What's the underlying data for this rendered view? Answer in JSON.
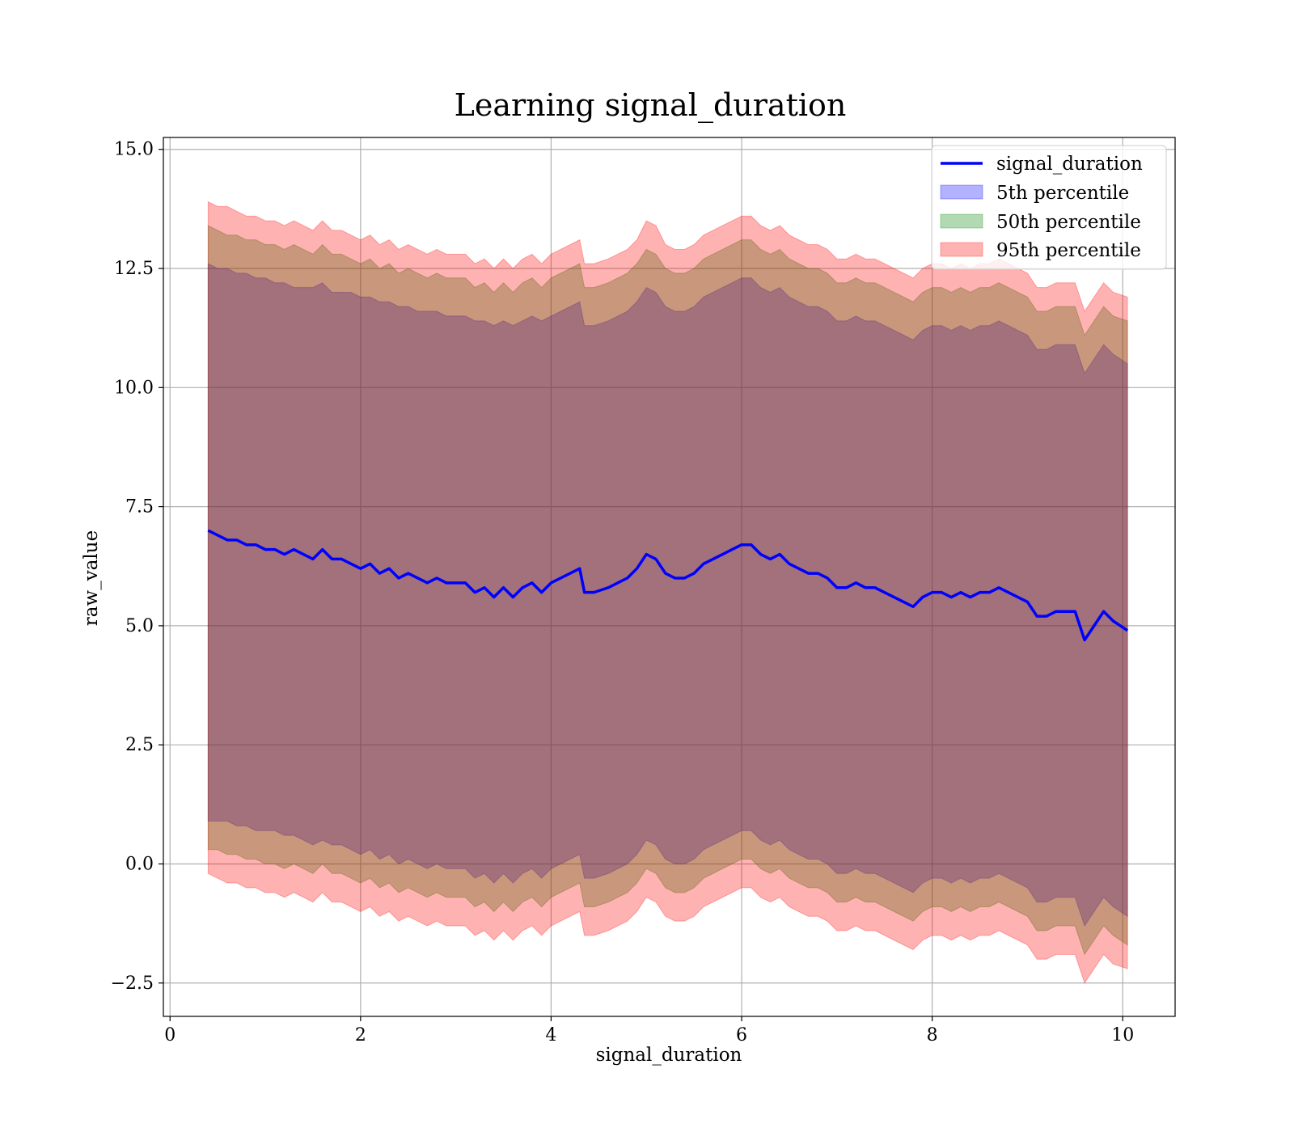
{
  "chart_data": {
    "type": "area",
    "title": "Learning signal_duration",
    "xlabel": "signal_duration",
    "ylabel": "raw_value",
    "xlim": [
      -0.07,
      10.55
    ],
    "ylim": [
      -3.2,
      15.25
    ],
    "xticks": [
      0,
      2,
      4,
      6,
      8,
      10
    ],
    "yticks": [
      -2.5,
      0.0,
      2.5,
      5.0,
      7.5,
      10.0,
      12.5,
      15.0
    ],
    "xtick_labels": [
      "0",
      "2",
      "4",
      "6",
      "8",
      "10"
    ],
    "ytick_labels": [
      "−2.5",
      "0.0",
      "2.5",
      "5.0",
      "7.5",
      "10.0",
      "12.5",
      "15.0"
    ],
    "grid": true,
    "legend_position": "top-right",
    "legend": [
      "signal_duration",
      "5th percentile",
      "50th percentile",
      "95th percentile"
    ],
    "colors": {
      "line": "#0000ff",
      "band_5th": "#0000ff",
      "band_50th": "#008000",
      "band_95th": "#ff0000"
    },
    "x": [
      0.4,
      0.5,
      0.6,
      0.7,
      0.8,
      0.9,
      1.0,
      1.1,
      1.2,
      1.3,
      1.4,
      1.5,
      1.6,
      1.7,
      1.8,
      1.9,
      2.0,
      2.1,
      2.2,
      2.3,
      2.4,
      2.5,
      2.6,
      2.7,
      2.8,
      2.9,
      3.0,
      3.1,
      3.2,
      3.3,
      3.4,
      3.5,
      3.6,
      3.7,
      3.8,
      3.9,
      4.0,
      4.1,
      4.2,
      4.3,
      4.35,
      4.45,
      4.6,
      4.7,
      4.8,
      4.9,
      5.0,
      5.1,
      5.2,
      5.3,
      5.4,
      5.5,
      5.6,
      5.7,
      5.8,
      5.9,
      6.0,
      6.1,
      6.2,
      6.3,
      6.4,
      6.5,
      6.6,
      6.7,
      6.8,
      6.9,
      7.0,
      7.1,
      7.2,
      7.3,
      7.4,
      7.5,
      7.6,
      7.7,
      7.8,
      7.9,
      8.0,
      8.1,
      8.2,
      8.3,
      8.4,
      8.5,
      8.6,
      8.7,
      8.8,
      8.9,
      9.0,
      9.1,
      9.2,
      9.3,
      9.4,
      9.5,
      9.6,
      9.7,
      9.8,
      9.9,
      10.05
    ],
    "series": [
      {
        "name": "signal_duration",
        "values": [
          7.0,
          6.9,
          6.8,
          6.8,
          6.7,
          6.7,
          6.6,
          6.6,
          6.5,
          6.6,
          6.5,
          6.4,
          6.6,
          6.4,
          6.4,
          6.3,
          6.2,
          6.3,
          6.1,
          6.2,
          6.0,
          6.1,
          6.0,
          5.9,
          6.0,
          5.9,
          5.9,
          5.9,
          5.7,
          5.8,
          5.6,
          5.8,
          5.6,
          5.8,
          5.9,
          5.7,
          5.9,
          6.0,
          6.1,
          6.2,
          5.7,
          5.7,
          5.8,
          5.9,
          6.0,
          6.2,
          6.5,
          6.4,
          6.1,
          6.0,
          6.0,
          6.1,
          6.3,
          6.4,
          6.5,
          6.6,
          6.7,
          6.7,
          6.5,
          6.4,
          6.5,
          6.3,
          6.2,
          6.1,
          6.1,
          6.0,
          5.8,
          5.8,
          5.9,
          5.8,
          5.8,
          5.7,
          5.6,
          5.5,
          5.4,
          5.6,
          5.7,
          5.7,
          5.6,
          5.7,
          5.6,
          5.7,
          5.7,
          5.8,
          5.7,
          5.6,
          5.5,
          5.2,
          5.2,
          5.3,
          5.3,
          5.3,
          4.7,
          5.0,
          5.3,
          5.1,
          4.9
        ]
      }
    ],
    "bands": [
      {
        "name": "5th percentile",
        "lower": [
          0.9,
          0.9,
          0.9,
          0.8,
          0.8,
          0.7,
          0.7,
          0.7,
          0.6,
          0.6,
          0.5,
          0.4,
          0.5,
          0.4,
          0.4,
          0.3,
          0.2,
          0.3,
          0.1,
          0.2,
          0.0,
          0.1,
          0.0,
          -0.1,
          0.0,
          -0.1,
          -0.1,
          -0.1,
          -0.3,
          -0.2,
          -0.4,
          -0.2,
          -0.4,
          -0.2,
          -0.1,
          -0.3,
          -0.1,
          0.0,
          0.1,
          0.2,
          -0.3,
          -0.3,
          -0.2,
          -0.1,
          0.0,
          0.2,
          0.5,
          0.4,
          0.1,
          0.0,
          0.0,
          0.1,
          0.3,
          0.4,
          0.5,
          0.6,
          0.7,
          0.7,
          0.5,
          0.4,
          0.5,
          0.3,
          0.2,
          0.1,
          0.1,
          0.0,
          -0.2,
          -0.2,
          -0.1,
          -0.2,
          -0.2,
          -0.3,
          -0.4,
          -0.5,
          -0.6,
          -0.4,
          -0.3,
          -0.3,
          -0.4,
          -0.3,
          -0.4,
          -0.3,
          -0.3,
          -0.2,
          -0.3,
          -0.4,
          -0.5,
          -0.8,
          -0.8,
          -0.7,
          -0.7,
          -0.7,
          -1.3,
          -1.0,
          -0.7,
          -0.9,
          -1.1
        ],
        "upper": [
          12.6,
          12.5,
          12.5,
          12.4,
          12.4,
          12.3,
          12.3,
          12.2,
          12.2,
          12.1,
          12.1,
          12.1,
          12.2,
          12.0,
          12.0,
          12.0,
          11.9,
          11.9,
          11.8,
          11.8,
          11.7,
          11.7,
          11.6,
          11.6,
          11.6,
          11.5,
          11.5,
          11.5,
          11.4,
          11.4,
          11.3,
          11.4,
          11.3,
          11.4,
          11.5,
          11.4,
          11.5,
          11.6,
          11.7,
          11.8,
          11.3,
          11.3,
          11.4,
          11.5,
          11.6,
          11.8,
          12.1,
          12.0,
          11.7,
          11.6,
          11.6,
          11.7,
          11.9,
          12.0,
          12.1,
          12.2,
          12.3,
          12.3,
          12.1,
          12.0,
          12.1,
          11.9,
          11.8,
          11.7,
          11.7,
          11.6,
          11.4,
          11.4,
          11.5,
          11.4,
          11.4,
          11.3,
          11.2,
          11.1,
          11.0,
          11.2,
          11.3,
          11.3,
          11.2,
          11.3,
          11.2,
          11.3,
          11.3,
          11.4,
          11.3,
          11.2,
          11.1,
          10.8,
          10.8,
          10.9,
          10.9,
          10.9,
          10.3,
          10.6,
          10.9,
          10.7,
          10.5
        ]
      },
      {
        "name": "50th percentile",
        "lower": [
          0.3,
          0.3,
          0.2,
          0.2,
          0.1,
          0.1,
          0.0,
          0.0,
          -0.1,
          0.0,
          -0.1,
          -0.2,
          0.0,
          -0.2,
          -0.2,
          -0.3,
          -0.4,
          -0.3,
          -0.5,
          -0.4,
          -0.6,
          -0.5,
          -0.6,
          -0.7,
          -0.6,
          -0.7,
          -0.7,
          -0.7,
          -0.9,
          -0.8,
          -1.0,
          -0.8,
          -1.0,
          -0.8,
          -0.7,
          -0.9,
          -0.7,
          -0.6,
          -0.5,
          -0.4,
          -0.9,
          -0.9,
          -0.8,
          -0.7,
          -0.6,
          -0.4,
          -0.1,
          -0.2,
          -0.5,
          -0.6,
          -0.6,
          -0.5,
          -0.3,
          -0.2,
          -0.1,
          0.0,
          0.1,
          0.1,
          -0.1,
          -0.2,
          -0.1,
          -0.3,
          -0.4,
          -0.5,
          -0.5,
          -0.6,
          -0.8,
          -0.8,
          -0.7,
          -0.8,
          -0.8,
          -0.9,
          -1.0,
          -1.1,
          -1.2,
          -1.0,
          -0.9,
          -0.9,
          -1.0,
          -0.9,
          -1.0,
          -0.9,
          -0.9,
          -0.8,
          -0.9,
          -1.0,
          -1.1,
          -1.4,
          -1.4,
          -1.3,
          -1.3,
          -1.3,
          -1.9,
          -1.6,
          -1.3,
          -1.5,
          -1.7
        ],
        "upper": [
          13.4,
          13.3,
          13.2,
          13.2,
          13.1,
          13.1,
          13.0,
          13.0,
          12.9,
          13.0,
          12.9,
          12.8,
          13.0,
          12.8,
          12.8,
          12.7,
          12.6,
          12.7,
          12.5,
          12.6,
          12.4,
          12.5,
          12.4,
          12.3,
          12.4,
          12.3,
          12.3,
          12.3,
          12.1,
          12.2,
          12.0,
          12.2,
          12.0,
          12.2,
          12.3,
          12.1,
          12.3,
          12.4,
          12.5,
          12.6,
          12.1,
          12.1,
          12.2,
          12.3,
          12.4,
          12.6,
          12.9,
          12.8,
          12.5,
          12.4,
          12.4,
          12.5,
          12.7,
          12.8,
          12.9,
          13.0,
          13.1,
          13.1,
          12.9,
          12.8,
          12.9,
          12.7,
          12.6,
          12.5,
          12.5,
          12.4,
          12.2,
          12.2,
          12.3,
          12.2,
          12.2,
          12.1,
          12.0,
          11.9,
          11.8,
          12.0,
          12.1,
          12.1,
          12.0,
          12.1,
          12.0,
          12.1,
          12.1,
          12.2,
          12.1,
          12.0,
          11.9,
          11.6,
          11.6,
          11.7,
          11.7,
          11.7,
          11.1,
          11.4,
          11.7,
          11.5,
          11.4
        ]
      },
      {
        "name": "95th percentile",
        "lower": [
          -0.2,
          -0.3,
          -0.4,
          -0.4,
          -0.5,
          -0.5,
          -0.6,
          -0.6,
          -0.7,
          -0.6,
          -0.7,
          -0.8,
          -0.6,
          -0.8,
          -0.8,
          -0.9,
          -1.0,
          -0.9,
          -1.1,
          -1.0,
          -1.2,
          -1.1,
          -1.2,
          -1.3,
          -1.2,
          -1.3,
          -1.3,
          -1.3,
          -1.5,
          -1.4,
          -1.6,
          -1.4,
          -1.6,
          -1.4,
          -1.3,
          -1.5,
          -1.3,
          -1.2,
          -1.1,
          -1.0,
          -1.5,
          -1.5,
          -1.4,
          -1.3,
          -1.2,
          -1.0,
          -0.7,
          -0.8,
          -1.1,
          -1.2,
          -1.2,
          -1.1,
          -0.9,
          -0.8,
          -0.7,
          -0.6,
          -0.5,
          -0.5,
          -0.7,
          -0.8,
          -0.7,
          -0.9,
          -1.0,
          -1.1,
          -1.1,
          -1.2,
          -1.4,
          -1.4,
          -1.3,
          -1.4,
          -1.4,
          -1.5,
          -1.6,
          -1.7,
          -1.8,
          -1.6,
          -1.5,
          -1.5,
          -1.6,
          -1.5,
          -1.6,
          -1.5,
          -1.5,
          -1.4,
          -1.5,
          -1.6,
          -1.7,
          -2.0,
          -2.0,
          -1.9,
          -1.9,
          -1.9,
          -2.5,
          -2.2,
          -1.9,
          -2.1,
          -2.2
        ],
        "upper": [
          13.9,
          13.8,
          13.8,
          13.7,
          13.6,
          13.6,
          13.5,
          13.5,
          13.4,
          13.5,
          13.4,
          13.3,
          13.5,
          13.3,
          13.3,
          13.2,
          13.1,
          13.2,
          13.0,
          13.1,
          12.9,
          13.0,
          12.9,
          12.8,
          12.9,
          12.8,
          12.8,
          12.8,
          12.6,
          12.7,
          12.5,
          12.7,
          12.5,
          12.7,
          12.8,
          12.6,
          12.8,
          12.9,
          13.0,
          13.1,
          12.6,
          12.6,
          12.7,
          12.8,
          12.9,
          13.1,
          13.5,
          13.4,
          13.0,
          12.9,
          12.9,
          13.0,
          13.2,
          13.3,
          13.4,
          13.5,
          13.6,
          13.6,
          13.4,
          13.3,
          13.4,
          13.2,
          13.1,
          13.0,
          13.0,
          12.9,
          12.7,
          12.7,
          12.8,
          12.7,
          12.7,
          12.6,
          12.5,
          12.4,
          12.3,
          12.5,
          12.6,
          12.6,
          12.5,
          12.6,
          12.5,
          12.6,
          12.6,
          12.7,
          12.6,
          12.5,
          12.4,
          12.1,
          12.1,
          12.2,
          12.2,
          12.2,
          11.6,
          11.9,
          12.2,
          12.0,
          11.9
        ]
      }
    ]
  }
}
